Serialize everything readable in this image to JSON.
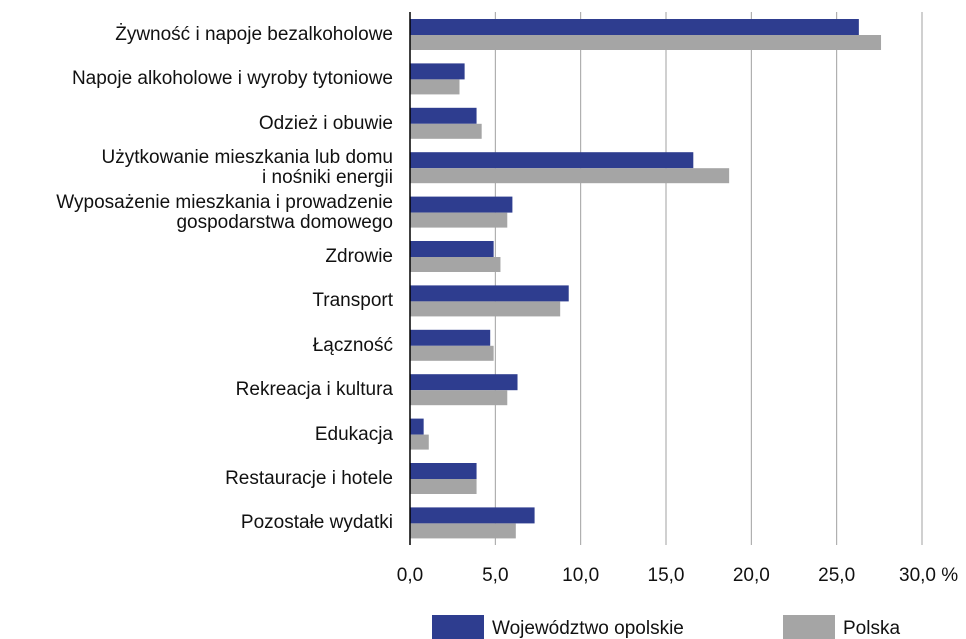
{
  "chart_data": {
    "type": "barh",
    "categories": [
      "Żywność i napoje bezalkoholowe",
      "Napoje alkoholowe i wyroby tytoniowe",
      "Odzież i obuwie",
      "Użytkowanie mieszkania lub domu\ni nośniki energii",
      "Wyposażenie mieszkania i prowadzenie\ngospodarstwa domowego",
      "Zdrowie",
      "Transport",
      "Łączność",
      "Rekreacja i kultura",
      "Edukacja",
      "Restauracje i hotele",
      "Pozostałe wydatki"
    ],
    "series": [
      {
        "name": "Województwo opolskie",
        "color": "#2e3d8f",
        "values": [
          26.3,
          3.2,
          3.9,
          16.6,
          6.0,
          4.9,
          9.3,
          4.7,
          6.3,
          0.8,
          3.9,
          7.3
        ]
      },
      {
        "name": "Polska",
        "color": "#a5a5a5",
        "values": [
          27.6,
          2.9,
          4.2,
          18.7,
          5.7,
          5.3,
          8.8,
          4.9,
          5.7,
          1.1,
          3.9,
          6.2
        ]
      }
    ],
    "xlim": [
      0,
      30
    ],
    "xticks": [
      {
        "value": 0,
        "label": "0,0"
      },
      {
        "value": 5,
        "label": "5,0"
      },
      {
        "value": 10,
        "label": "10,0"
      },
      {
        "value": 15,
        "label": "15,0"
      },
      {
        "value": 20,
        "label": "20,0"
      },
      {
        "value": 25,
        "label": "25,0"
      },
      {
        "value": 30,
        "label": "30,0 %"
      }
    ],
    "grid": true
  }
}
